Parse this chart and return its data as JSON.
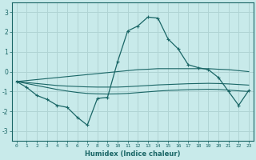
{
  "xlabel": "Humidex (Indice chaleur)",
  "background_color": "#c8eaea",
  "grid_color": "#b0d4d4",
  "line_color": "#1a6666",
  "x": [
    0,
    1,
    2,
    3,
    4,
    5,
    6,
    7,
    8,
    9,
    10,
    11,
    12,
    13,
    14,
    15,
    16,
    17,
    18,
    19,
    20,
    21,
    22,
    23
  ],
  "ylim": [
    -3.5,
    3.5
  ],
  "yticks": [
    -3,
    -2,
    -1,
    0,
    1,
    2,
    3
  ],
  "xlim": [
    -0.5,
    23.5
  ],
  "series": {
    "main": [
      -0.5,
      -0.8,
      -1.2,
      -1.4,
      -1.7,
      -1.8,
      -2.3,
      -2.7,
      -1.35,
      -1.3,
      0.5,
      2.05,
      2.3,
      2.75,
      2.7,
      1.65,
      1.15,
      0.35,
      0.2,
      0.1,
      -0.3,
      -1.0,
      -1.7,
      -0.95
    ],
    "band_upper": [
      -0.5,
      -0.45,
      -0.4,
      -0.35,
      -0.3,
      -0.25,
      -0.2,
      -0.15,
      -0.1,
      -0.05,
      0.0,
      0.05,
      0.1,
      0.12,
      0.15,
      0.15,
      0.15,
      0.15,
      0.15,
      0.15,
      0.12,
      0.1,
      0.05,
      0.0
    ],
    "band_mid": [
      -0.5,
      -0.55,
      -0.6,
      -0.65,
      -0.7,
      -0.73,
      -0.75,
      -0.77,
      -0.78,
      -0.78,
      -0.78,
      -0.76,
      -0.73,
      -0.7,
      -0.67,
      -0.65,
      -0.63,
      -0.61,
      -0.6,
      -0.59,
      -0.6,
      -0.62,
      -0.65,
      -0.68
    ],
    "band_lower": [
      -0.5,
      -0.6,
      -0.7,
      -0.8,
      -0.9,
      -0.98,
      -1.05,
      -1.1,
      -1.12,
      -1.13,
      -1.12,
      -1.1,
      -1.06,
      -1.02,
      -0.98,
      -0.95,
      -0.93,
      -0.91,
      -0.9,
      -0.89,
      -0.9,
      -0.93,
      -0.97,
      -1.0
    ]
  }
}
